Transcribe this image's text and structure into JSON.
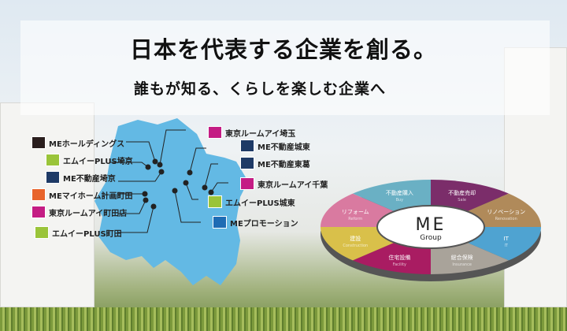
{
  "headline": "日本を代表する企業を創る。",
  "subheadline": "誰もが知る、くらしを楽しむ企業へ",
  "map": {
    "color": "#63b9e4",
    "locations": [
      {
        "label": "MEホールディングス",
        "logo_color": "#2a1e1e"
      },
      {
        "label": "エムイーPLUS埼京",
        "logo_color": "#9ac43a"
      },
      {
        "label": "ME不動産埼京",
        "logo_color": "#1e3a66"
      },
      {
        "label": "MEマイホーム計画町田",
        "logo_color": "#e8642c"
      },
      {
        "label": "東京ルームアイ町田店",
        "logo_color": "#c41c84"
      },
      {
        "label": "エムイーPLUS町田",
        "logo_color": "#9ac43a"
      },
      {
        "label": "東京ルームアイ埼玉",
        "logo_color": "#c41c84"
      },
      {
        "label": "ME不動産城東",
        "logo_color": "#1e3a66"
      },
      {
        "label": "ME不動産東葛",
        "logo_color": "#1e3a66"
      },
      {
        "label": "東京ルームアイ千葉",
        "logo_color": "#c41c84"
      },
      {
        "label": "エムイーPLUS城東",
        "logo_color": "#9ac43a"
      },
      {
        "label": "MEプロモーション",
        "logo_color": "#1e6cb4"
      }
    ]
  },
  "group": {
    "logo_main": "ME",
    "logo_sub": "Group",
    "segments": [
      {
        "label": "不動産売却",
        "en": "Sale",
        "color": "#7b2d6a"
      },
      {
        "label": "リノベーション",
        "en": "Renovation",
        "color": "#b08a5a"
      },
      {
        "label": "IT",
        "en": "IT",
        "color": "#4fa3d1"
      },
      {
        "label": "総合保険",
        "en": "Insurance",
        "color": "#a9a39a"
      },
      {
        "label": "住宅設備",
        "en": "Facility",
        "color": "#a91c62"
      },
      {
        "label": "建設",
        "en": "Construction",
        "color": "#d9c04a"
      },
      {
        "label": "リフォーム",
        "en": "Reform",
        "color": "#d97aa0"
      },
      {
        "label": "不動産購入",
        "en": "Buy",
        "color": "#6ab0c4"
      }
    ]
  }
}
